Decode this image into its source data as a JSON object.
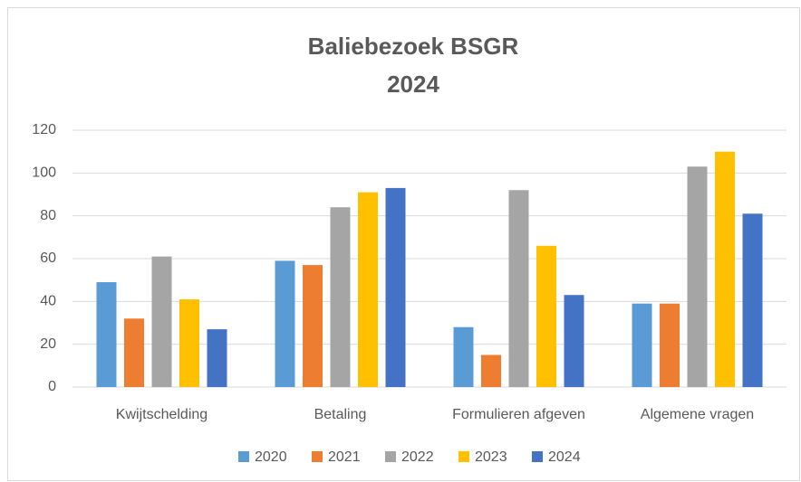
{
  "chart_data": {
    "type": "bar",
    "title": [
      "Baliebezoek BSGR",
      "2024"
    ],
    "categories": [
      "Kwijtschelding",
      "Betaling",
      "Formulieren afgeven",
      "Algemene vragen"
    ],
    "series": [
      {
        "name": "2020",
        "color": "#5b9bd5",
        "values": [
          49,
          59,
          28,
          39
        ]
      },
      {
        "name": "2021",
        "color": "#ed7d31",
        "values": [
          32,
          57,
          15,
          39
        ]
      },
      {
        "name": "2022",
        "color": "#a5a5a5",
        "values": [
          61,
          84,
          92,
          103
        ]
      },
      {
        "name": "2023",
        "color": "#ffc000",
        "values": [
          41,
          91,
          66,
          110
        ]
      },
      {
        "name": "2024",
        "color": "#4472c4",
        "values": [
          27,
          93,
          43,
          81
        ]
      }
    ],
    "ylim": [
      0,
      120
    ],
    "yticks": [
      0,
      20,
      40,
      60,
      80,
      100,
      120
    ],
    "grid": true,
    "legend": "bottom"
  }
}
